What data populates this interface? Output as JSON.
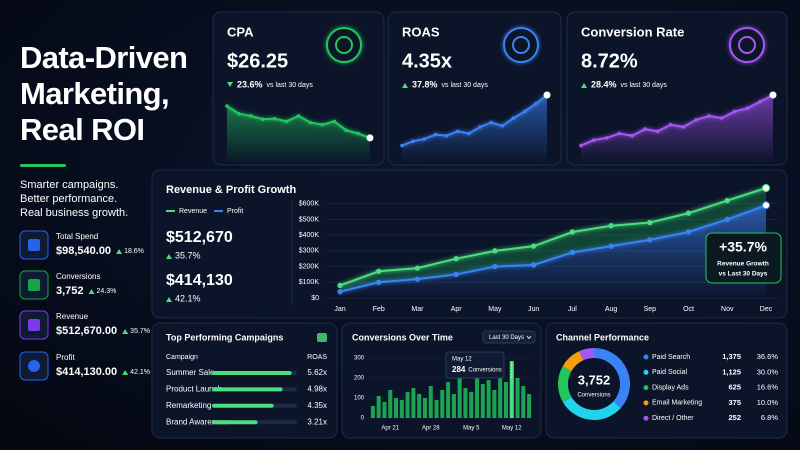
{
  "hero": {
    "title": [
      "Data-Driven",
      "Marketing,",
      "Real ROI"
    ],
    "tagline": [
      "Smarter campaigns.",
      "Better performance.",
      "Real business growth."
    ]
  },
  "summary": [
    {
      "label": "Total Spend",
      "value": "$98,540.00",
      "change": "18.6%",
      "color": "#2563eb"
    },
    {
      "label": "Conversions",
      "value": "3,752",
      "change": "24.3%",
      "color": "#16a34a"
    },
    {
      "label": "Revenue",
      "value": "$512,670.00",
      "change": "35.7%",
      "color": "#7c3aed"
    },
    {
      "label": "Profit",
      "value": "$414,130.00",
      "change": "42.1%",
      "color": "#2563eb"
    }
  ],
  "kpis": [
    {
      "title": "CPA",
      "value": "$26.25",
      "change": "23.6%",
      "direction": "down",
      "note": "vs last 30 days",
      "color": "#22c55e",
      "ylim": [
        0,
        100
      ],
      "trend": [
        80,
        66,
        62,
        56,
        57,
        52,
        62,
        50,
        46,
        52,
        36,
        30,
        22
      ]
    },
    {
      "title": "ROAS",
      "value": "4.35x",
      "change": "37.8%",
      "direction": "up",
      "note": "vs last 30 days",
      "color": "#3b82f6",
      "ylim": [
        0,
        100
      ],
      "trend": [
        8,
        16,
        20,
        28,
        26,
        34,
        30,
        42,
        50,
        44,
        58,
        70,
        84,
        100
      ]
    },
    {
      "title": "Conversion Rate",
      "value": "8.72%",
      "change": "28.4%",
      "direction": "up",
      "note": "vs last 30 days",
      "color": "#a855f7",
      "ylim": [
        0,
        100
      ],
      "trend": [
        8,
        18,
        22,
        30,
        26,
        38,
        34,
        46,
        42,
        55,
        62,
        58,
        70,
        76,
        88,
        100
      ]
    }
  ],
  "growth": {
    "title": "Revenue & Profit Growth",
    "categories": [
      "Jan",
      "Feb",
      "Mar",
      "Apr",
      "May",
      "Jun",
      "Jul",
      "Aug",
      "Sep",
      "Oct",
      "Nov",
      "Dec"
    ],
    "ylim": [
      0,
      700000
    ],
    "yticks": [
      {
        "value": 0,
        "label": "$0"
      },
      {
        "value": 100000,
        "label": "$100K"
      },
      {
        "value": 200000,
        "label": "$200K"
      },
      {
        "value": 300000,
        "label": "$300K"
      },
      {
        "value": 400000,
        "label": "$400K"
      },
      {
        "value": 500000,
        "label": "$500K"
      },
      {
        "value": 600000,
        "label": "$600K"
      }
    ],
    "grid": true,
    "series": [
      {
        "name": "Revenue",
        "color": "#4ade80",
        "total": "$512,670",
        "change": "35.7%",
        "values": [
          80000,
          170000,
          190000,
          250000,
          300000,
          330000,
          420000,
          460000,
          480000,
          540000,
          620000,
          700000
        ]
      },
      {
        "name": "Profit",
        "color": "#3b82f6",
        "total": "$414,130",
        "change": "42.1%",
        "values": [
          40000,
          100000,
          120000,
          150000,
          200000,
          210000,
          290000,
          330000,
          370000,
          420000,
          500000,
          590000
        ]
      }
    ],
    "annotation": {
      "value": "+35.7%",
      "text": [
        "Revenue Growth",
        "vs Last 30 Days"
      ]
    }
  },
  "campaigns": {
    "title": "Top Performing Campaigns",
    "columns": [
      "Campaign",
      "ROAS"
    ],
    "names": [
      "Summer Sale",
      "Product Launch",
      "Remarketing",
      "Brand Awareness"
    ],
    "values": [
      5.62,
      4.98,
      4.35,
      3.21
    ],
    "value_labels": [
      "5.62x",
      "4.98x",
      "4.35x",
      "3.21x"
    ],
    "xlim": [
      0,
      6
    ],
    "color": "#4ade80"
  },
  "conversions": {
    "title": "Conversions Over Time",
    "range": "Last 30 Days",
    "categories": [
      null,
      null,
      null,
      "Apr 21",
      null,
      null,
      null,
      null,
      null,
      null,
      "Apr 28",
      null,
      null,
      null,
      null,
      null,
      null,
      "May 5",
      null,
      null,
      null,
      null,
      null,
      null,
      "May 12",
      null,
      null,
      null
    ],
    "values": [
      60,
      110,
      80,
      140,
      100,
      90,
      130,
      150,
      120,
      100,
      160,
      90,
      140,
      180,
      120,
      200,
      150,
      130,
      210,
      170,
      190,
      140,
      230,
      180,
      284,
      200,
      160,
      120
    ],
    "ylim": [
      0,
      330
    ],
    "yticks": [
      0,
      100,
      200,
      300
    ],
    "color": "#22c55e",
    "tooltip": {
      "date": "May 12",
      "value": 284,
      "label": "Conversions"
    }
  },
  "channels": {
    "title": "Channel Performance",
    "total": "3,752",
    "total_label": "Conversions",
    "names": [
      "Paid Search",
      "Paid Social",
      "Display Ads",
      "Email Marketing",
      "Direct / Other"
    ],
    "values": [
      1375,
      1125,
      625,
      375,
      252
    ],
    "value_labels": [
      "1,375",
      "1,125",
      "625",
      "375",
      "252"
    ],
    "shares": [
      36.6,
      30.0,
      16.6,
      10.0,
      6.8
    ],
    "share_labels": [
      "36.6%",
      "30.0%",
      "16.6%",
      "10.0%",
      "6.8%"
    ],
    "colors": [
      "#3b82f6",
      "#22d3ee",
      "#22c55e",
      "#f59e0b",
      "#a855f7"
    ]
  }
}
